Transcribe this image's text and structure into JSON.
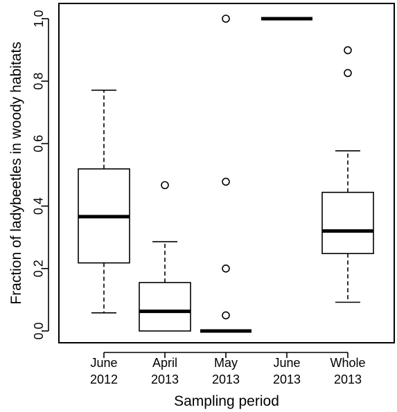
{
  "chart_data": {
    "type": "boxplot",
    "xlabel": "Sampling period",
    "ylabel": "Fraction of ladybeetles in woody habitats",
    "ylim": [
      -0.04,
      1.04
    ],
    "yticks": [
      "0.0",
      "0.2",
      "0.4",
      "0.6",
      "0.8",
      "1.0"
    ],
    "grid": false,
    "categories": [
      [
        "June",
        "2012"
      ],
      [
        "April",
        "2013"
      ],
      [
        "May",
        "2013"
      ],
      [
        "June",
        "2013"
      ],
      [
        "Whole",
        "2013"
      ]
    ],
    "boxes": [
      {
        "whisker_low": 0.058,
        "q1": 0.218,
        "median": 0.366,
        "q3": 0.519,
        "whisker_high": 0.771,
        "outliers": []
      },
      {
        "whisker_low": 0.0,
        "q1": 0.0,
        "median": 0.063,
        "q3": 0.155,
        "whisker_high": 0.286,
        "outliers": [
          0.467
        ]
      },
      {
        "whisker_low": 0.0,
        "q1": 0.0,
        "median": 0.0,
        "q3": 0.0,
        "whisker_high": 0.0,
        "outliers": [
          0.05,
          0.2,
          0.478,
          1.0
        ]
      },
      {
        "whisker_low": 1.0,
        "q1": 1.0,
        "median": 1.0,
        "q3": 1.0,
        "whisker_high": 1.0,
        "outliers": []
      },
      {
        "whisker_low": 0.092,
        "q1": 0.248,
        "median": 0.32,
        "q3": 0.444,
        "whisker_high": 0.577,
        "outliers": [
          0.826,
          0.899
        ]
      }
    ]
  }
}
